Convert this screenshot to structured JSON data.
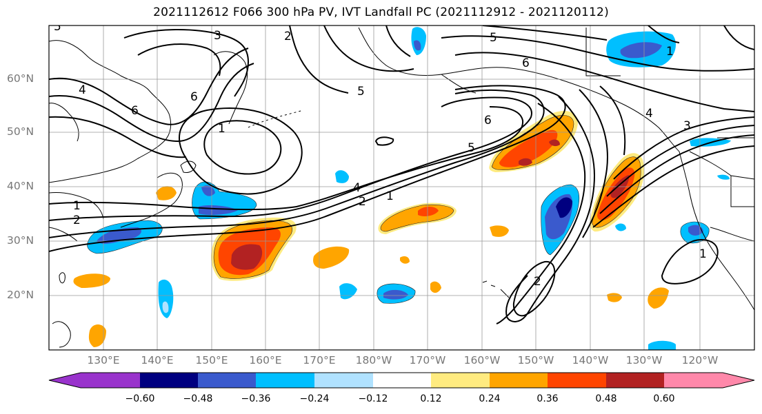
{
  "title": "2021112612 F066 300 hPa PV, IVT Landfall PC (2021112912 - 2021120112)",
  "lat_ticks": [
    "60°N",
    "50°N",
    "40°N",
    "30°N",
    "20°N"
  ],
  "lon_ticks": [
    "130°E",
    "140°E",
    "150°E",
    "160°E",
    "170°E",
    "180°W",
    "170°W",
    "160°W",
    "150°W",
    "140°W",
    "130°W",
    "120°W"
  ],
  "colorbar": {
    "labels": [
      "−0.60",
      "−0.48",
      "−0.36",
      "−0.24",
      "−0.12",
      "0.12",
      "0.24",
      "0.36",
      "0.48",
      "0.60"
    ],
    "colors": [
      "#9933cc",
      "#000080",
      "#3a5acd",
      "#00bfff",
      "#b0e2ff",
      "#ffffff",
      "#ffeb80",
      "#ffa500",
      "#ff4500",
      "#b22222",
      "#ff88aa"
    ]
  },
  "contour_labels": {
    "a": "3",
    "b": "2",
    "c": "5",
    "d": "6",
    "e": "4",
    "f": "6",
    "g": "1",
    "h": "5",
    "i": "6",
    "j": "5",
    "k": "4",
    "l": "2",
    "m": "1",
    "n": "1",
    "o": "2",
    "p": "1",
    "q": "2",
    "r": "3",
    "s": "4",
    "t": "1",
    "u": "6",
    "v": "5"
  }
}
